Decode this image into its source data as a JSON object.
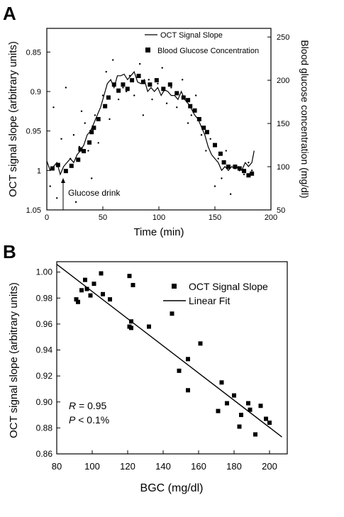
{
  "chart_data": [
    {
      "panel_label": "A",
      "type": "line",
      "xlabel": "Time (min)",
      "ylabel": "OCT signal slope (arbitrary units)",
      "y2label": "Blood glucose concentration (mg/dl)",
      "xlim": [
        0,
        200
      ],
      "ylim": [
        1.05,
        0.82
      ],
      "y2lim": [
        50,
        260
      ],
      "x_ticks": [
        "0",
        "50",
        "100",
        "150",
        "200"
      ],
      "y_ticks": [
        "0.85",
        "0.9",
        "0.95",
        "1",
        "1.05"
      ],
      "y2_ticks": [
        "50",
        "100",
        "150",
        "200",
        "250"
      ],
      "annotation": "Glucose drink",
      "annotation_x": 15,
      "legend": [
        "OCT Signal Slope",
        "Blood Glucose Concentration"
      ],
      "legend_position": "top-right",
      "oct_line": {
        "name": "OCT Signal Slope",
        "x": [
          0,
          3,
          6,
          9,
          12,
          15,
          18,
          21,
          24,
          27,
          30,
          33,
          36,
          39,
          42,
          45,
          48,
          51,
          54,
          57,
          60,
          63,
          66,
          69,
          72,
          75,
          78,
          81,
          84,
          87,
          90,
          93,
          96,
          99,
          102,
          105,
          108,
          111,
          114,
          117,
          120,
          123,
          126,
          129,
          132,
          135,
          138,
          141,
          144,
          147,
          150,
          153,
          156,
          159,
          162,
          165,
          168,
          171,
          174,
          177,
          180,
          183,
          185
        ],
        "y": [
          0.988,
          1.0,
          0.995,
          0.99,
          1.005,
          0.995,
          0.99,
          0.985,
          0.99,
          0.98,
          0.975,
          0.968,
          0.955,
          0.95,
          0.94,
          0.93,
          0.92,
          0.905,
          0.89,
          0.885,
          0.895,
          0.88,
          0.88,
          0.878,
          0.885,
          0.88,
          0.875,
          0.888,
          0.89,
          0.885,
          0.9,
          0.895,
          0.9,
          0.895,
          0.905,
          0.898,
          0.9,
          0.905,
          0.905,
          0.91,
          0.9,
          0.91,
          0.915,
          0.922,
          0.93,
          0.935,
          0.945,
          0.955,
          0.97,
          0.98,
          0.985,
          0.99,
          1.0,
          0.995,
          1.0,
          0.995,
          0.998,
          0.995,
          1.0,
          0.99,
          0.995,
          0.99,
          0.975
        ]
      },
      "glucose_points": {
        "name": "Blood Glucose Concentration",
        "x": [
          5,
          10,
          17,
          22,
          28,
          30,
          33,
          38,
          40,
          42,
          46,
          52,
          55,
          60,
          64,
          68,
          72,
          76,
          82,
          86,
          92,
          98,
          104,
          110,
          116,
          122,
          126,
          128,
          132,
          136,
          140,
          143,
          150,
          155,
          158,
          162,
          168,
          172,
          176,
          180,
          183
        ],
        "y": [
          98,
          102,
          95,
          101,
          108,
          120,
          118,
          128,
          140,
          145,
          155,
          170,
          180,
          195,
          188,
          195,
          190,
          200,
          205,
          198,
          195,
          200,
          190,
          195,
          185,
          180,
          177,
          170,
          165,
          155,
          145,
          140,
          125,
          115,
          105,
          100,
          100,
          98,
          95,
          90,
          92
        ]
      },
      "scatter_dots": {
        "x": [
          3,
          6,
          9,
          13,
          17,
          21,
          24,
          26,
          29,
          31,
          34,
          37,
          40,
          43,
          46,
          50,
          53,
          56,
          59,
          64,
          68,
          71,
          74,
          78,
          83,
          86,
          91,
          94,
          99,
          103,
          107,
          111,
          116,
          121,
          126,
          129,
          133,
          138,
          142,
          146,
          150,
          153,
          156,
          160,
          164,
          168,
          172,
          176,
          180,
          183
        ],
        "y": [
          1.02,
          0.92,
          1.035,
          0.96,
          0.895,
          0.985,
          0.955,
          1.04,
          0.97,
          0.925,
          0.94,
          0.975,
          1.01,
          0.93,
          0.965,
          0.905,
          0.875,
          0.935,
          0.86,
          0.91,
          0.895,
          0.9,
          0.88,
          0.905,
          0.865,
          0.93,
          0.885,
          0.91,
          0.89,
          0.87,
          0.915,
          0.895,
          0.92,
          0.885,
          0.94,
          0.93,
          0.905,
          0.955,
          0.975,
          0.96,
          1.02,
          0.985,
          1.01,
          0.975,
          1.03,
          0.995,
          1.0,
          1.005,
          0.99,
          1.0
        ]
      }
    },
    {
      "panel_label": "B",
      "type": "scatter",
      "xlabel": "BGC (mg/dl)",
      "ylabel": "OCT signal slope (arbitrary units)",
      "xlim": [
        80,
        210
      ],
      "ylim": [
        0.86,
        1.008
      ],
      "x_ticks": [
        "80",
        "100",
        "120",
        "140",
        "160",
        "180",
        "200"
      ],
      "y_ticks": [
        "0.86",
        "0.88",
        "0.90",
        "0.92",
        "0.94",
        "0.96",
        "0.98",
        "1.00"
      ],
      "legend": [
        "OCT Signal Slope",
        "Linear Fit"
      ],
      "legend_position": "top-right",
      "stats": [
        {
          "label": "R",
          "value": " = 0.95"
        },
        {
          "label": "P",
          "value": " < 0.1%"
        }
      ],
      "points": {
        "name": "OCT Signal Slope",
        "x": [
          91,
          92,
          94,
          96,
          97,
          99,
          101,
          105,
          106,
          110,
          121,
          122,
          123,
          121,
          122,
          132,
          145,
          149,
          154,
          154,
          161,
          171,
          173,
          176,
          180,
          183,
          184,
          188,
          189,
          192,
          195,
          198,
          200
        ],
        "y": [
          0.979,
          0.977,
          0.986,
          0.994,
          0.987,
          0.982,
          0.991,
          0.999,
          0.983,
          0.979,
          0.997,
          0.962,
          0.99,
          0.958,
          0.957,
          0.958,
          0.968,
          0.924,
          0.933,
          0.909,
          0.945,
          0.893,
          0.915,
          0.899,
          0.905,
          0.881,
          0.89,
          0.899,
          0.894,
          0.875,
          0.897,
          0.887,
          0.884
        ]
      },
      "fit": {
        "name": "Linear Fit",
        "x": [
          80,
          207
        ],
        "y": [
          1.006,
          0.873
        ]
      }
    }
  ]
}
